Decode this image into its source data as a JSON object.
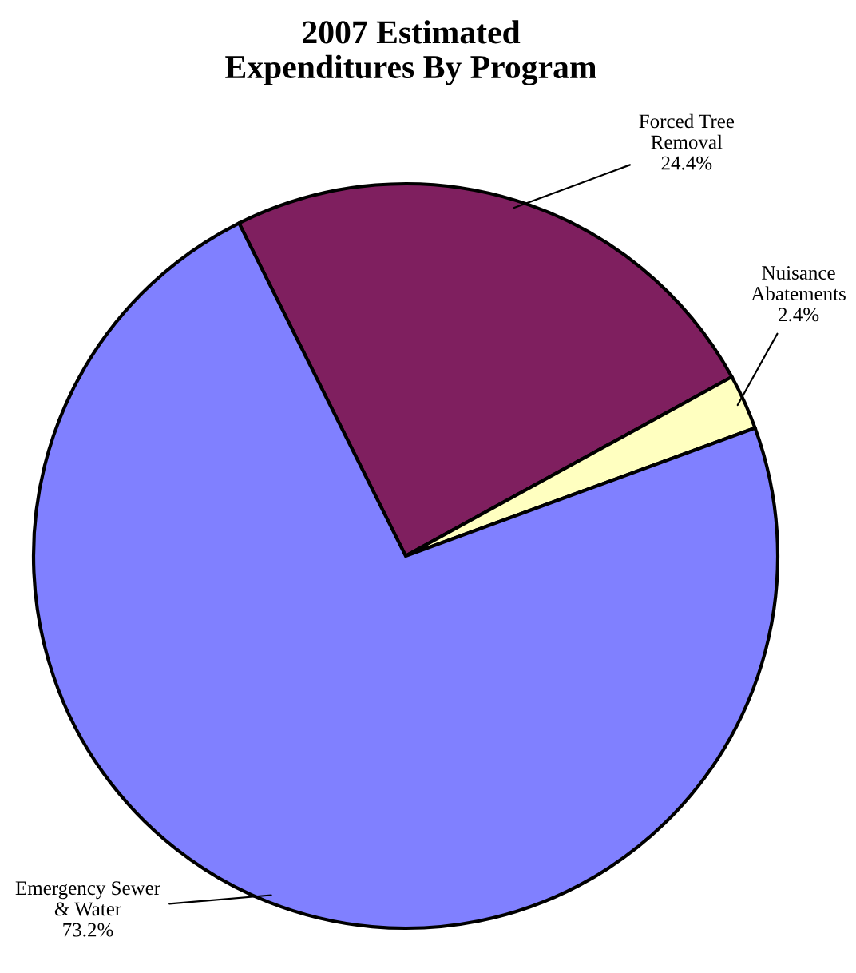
{
  "chart_data": {
    "type": "pie",
    "title": "2007 Estimated\nExpenditures By Program",
    "categories": [
      "Forced Tree\nRemoval",
      "Nuisance\nAbatements",
      "Emergency Sewer\n& Water"
    ],
    "values": [
      24.4,
      2.4,
      73.2
    ],
    "colors": [
      "#7f1f5f",
      "#ffffc0",
      "#8080ff"
    ],
    "value_labels": [
      "24.4%",
      "2.4%",
      "73.2%"
    ],
    "legend": false
  }
}
